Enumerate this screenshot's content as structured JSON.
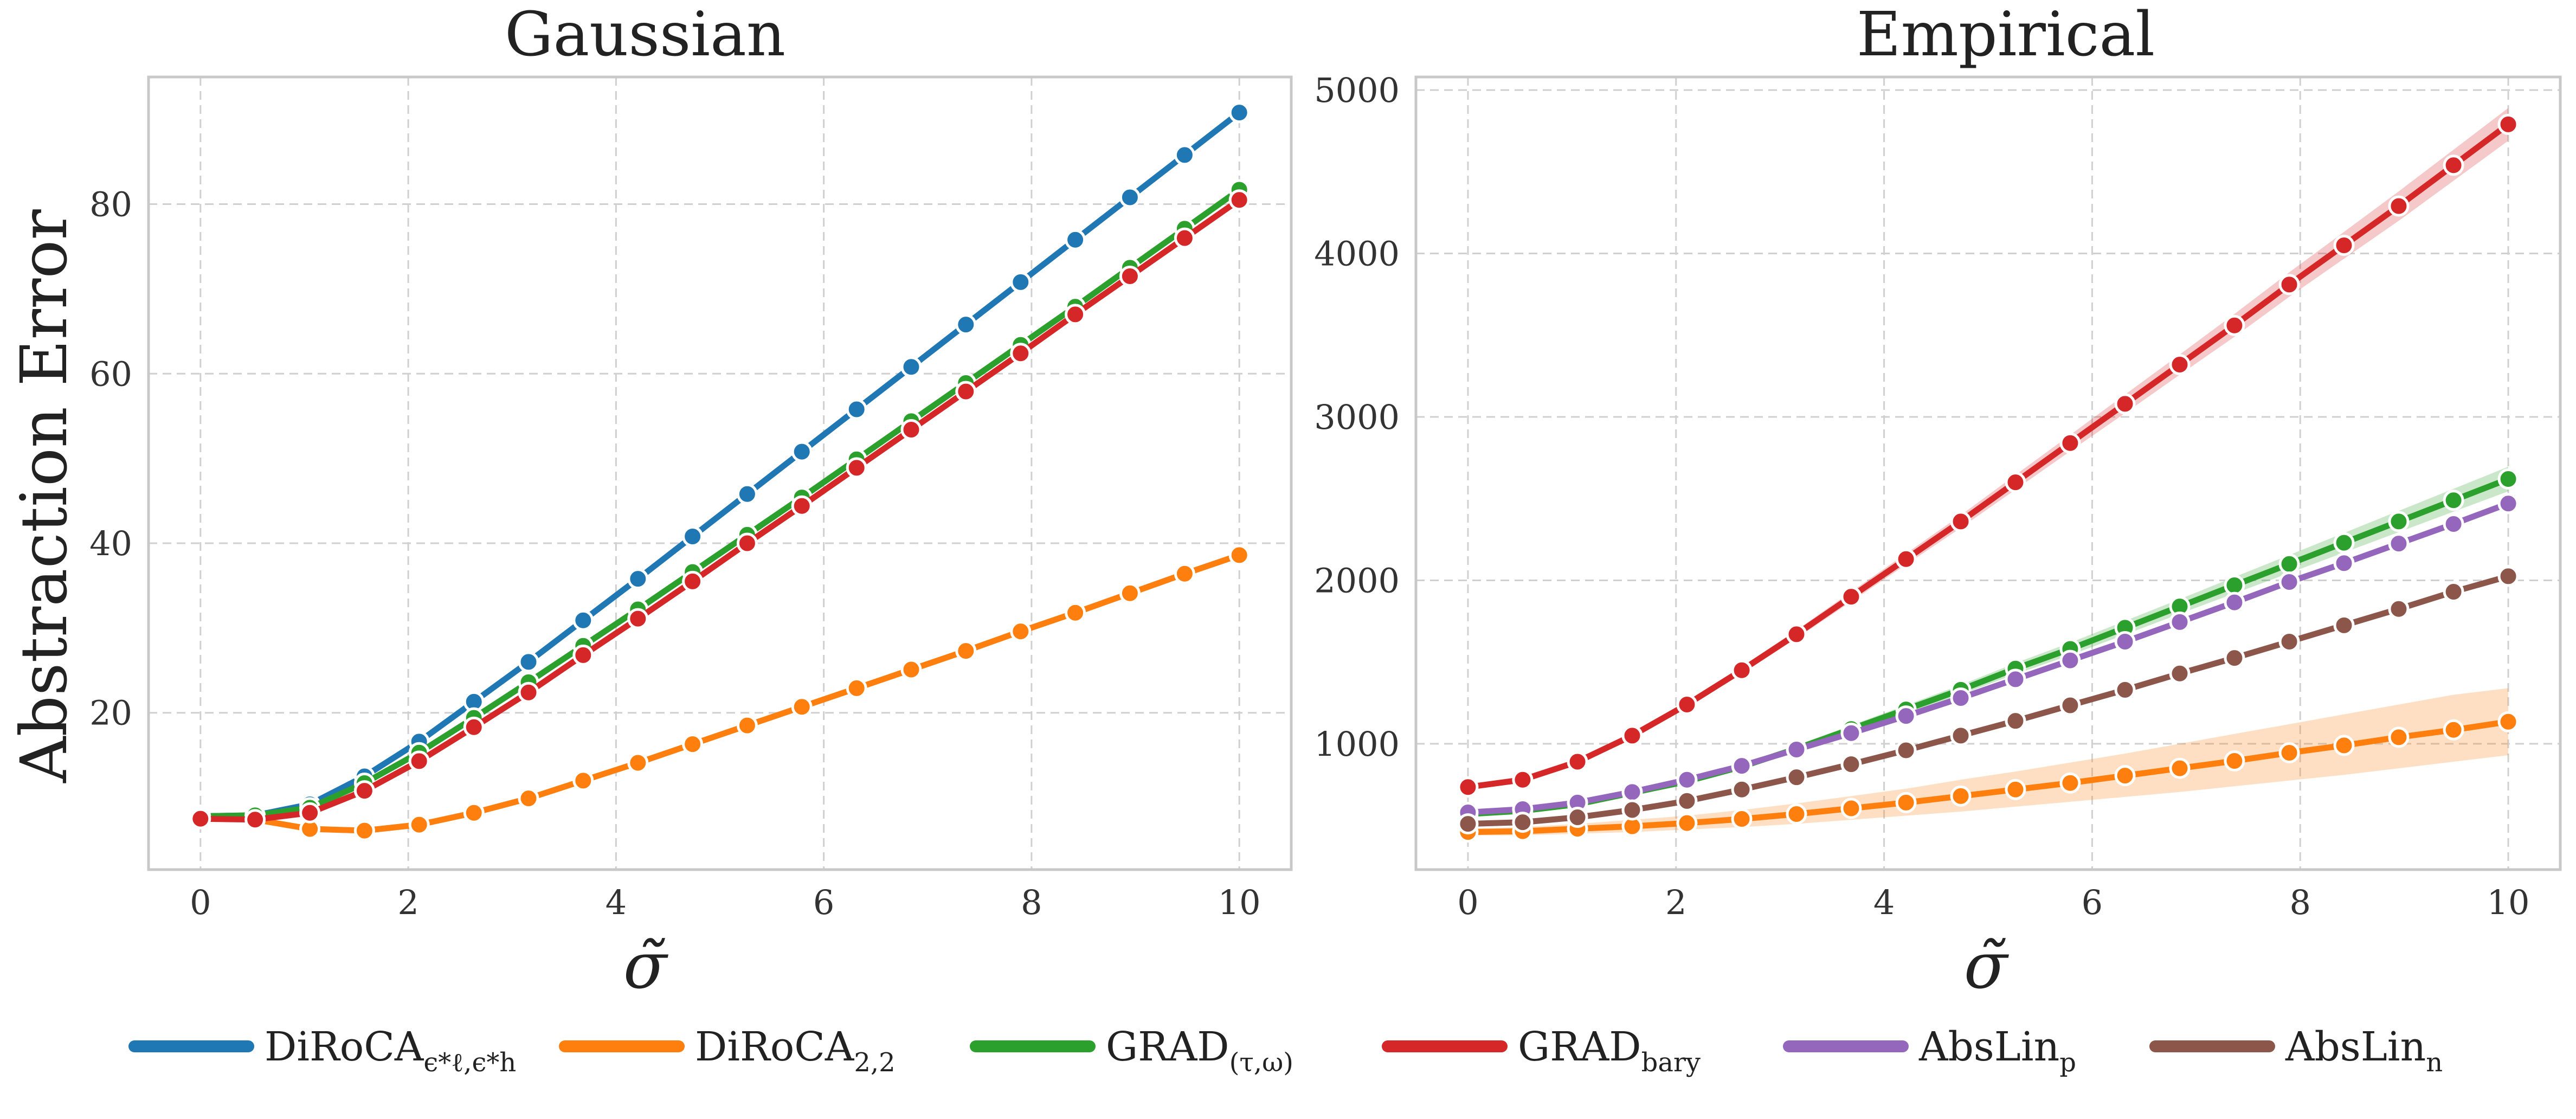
{
  "chart_data": [
    {
      "type": "line",
      "title": "Gaussian",
      "xlabel": "σ̃",
      "ylabel": "Abstraction Error",
      "xlim": [
        -0.5,
        10.5
      ],
      "ylim": [
        1.5,
        95
      ],
      "xticks": [
        0,
        2,
        4,
        6,
        8,
        10
      ],
      "yticks": [
        20,
        40,
        60,
        80
      ],
      "grid": true,
      "x": [
        0,
        0.526,
        1.053,
        1.579,
        2.105,
        2.632,
        3.158,
        3.684,
        4.211,
        4.737,
        5.263,
        5.789,
        6.316,
        6.842,
        7.368,
        7.895,
        8.421,
        8.947,
        9.474,
        10
      ],
      "series": [
        {
          "key": "diroca_eps",
          "values": [
            7.8,
            7.9,
            9.2,
            12.5,
            16.6,
            21.3,
            26.0,
            30.9,
            35.8,
            40.8,
            45.8,
            50.8,
            55.8,
            60.8,
            65.8,
            70.8,
            75.8,
            80.8,
            85.8,
            90.8
          ]
        },
        {
          "key": "diroca_22",
          "values": [
            7.6,
            7.4,
            6.3,
            6.1,
            6.8,
            8.2,
            9.9,
            12.0,
            14.1,
            16.3,
            18.5,
            20.7,
            22.9,
            25.1,
            27.3,
            29.6,
            31.8,
            34.1,
            36.4,
            38.6
          ]
        },
        {
          "key": "grad_tw",
          "values": [
            7.8,
            7.9,
            8.8,
            11.7,
            15.3,
            19.4,
            23.6,
            27.9,
            32.2,
            36.6,
            41.0,
            45.4,
            49.9,
            54.4,
            58.9,
            63.4,
            67.9,
            72.5,
            77.1,
            81.7
          ]
        },
        {
          "key": "grad_bary",
          "values": [
            7.5,
            7.4,
            8.2,
            10.8,
            14.3,
            18.3,
            22.4,
            26.8,
            31.1,
            35.5,
            40.0,
            44.4,
            48.9,
            53.4,
            57.9,
            62.4,
            67.0,
            71.5,
            76.0,
            80.5
          ]
        }
      ],
      "bands": []
    },
    {
      "type": "line",
      "title": "Empirical",
      "xlabel": "σ̃",
      "ylabel": "",
      "xlim": [
        -0.5,
        10.5
      ],
      "ylim": [
        230,
        5080
      ],
      "xticks": [
        0,
        2,
        4,
        6,
        8,
        10
      ],
      "yticks": [
        1000,
        2000,
        3000,
        4000,
        5000
      ],
      "grid": true,
      "x": [
        0,
        0.526,
        1.053,
        1.579,
        2.105,
        2.632,
        3.158,
        3.684,
        4.211,
        4.737,
        5.263,
        5.789,
        6.316,
        6.842,
        7.368,
        7.895,
        8.421,
        8.947,
        9.474,
        10
      ],
      "series": [
        {
          "key": "diroca_22",
          "values": [
            460,
            465,
            480,
            495,
            515,
            540,
            570,
            605,
            640,
            680,
            720,
            760,
            805,
            850,
            895,
            945,
            990,
            1040,
            1085,
            1135
          ]
        },
        {
          "key": "grad_tw",
          "values": [
            570,
            590,
            630,
            700,
            770,
            860,
            970,
            1090,
            1210,
            1330,
            1460,
            1580,
            1710,
            1840,
            1970,
            2100,
            2230,
            2360,
            2490,
            2620
          ]
        },
        {
          "key": "grad_bary",
          "values": [
            735,
            780,
            890,
            1050,
            1240,
            1450,
            1670,
            1900,
            2130,
            2360,
            2600,
            2840,
            3080,
            3320,
            3560,
            3810,
            4050,
            4290,
            4540,
            4790
          ]
        },
        {
          "key": "abslin_p",
          "values": [
            580,
            600,
            640,
            705,
            780,
            865,
            965,
            1065,
            1170,
            1280,
            1395,
            1510,
            1625,
            1745,
            1865,
            1990,
            2105,
            2225,
            2345,
            2470
          ]
        },
        {
          "key": "abslin_n",
          "values": [
            510,
            520,
            550,
            595,
            650,
            720,
            795,
            875,
            960,
            1050,
            1140,
            1235,
            1330,
            1430,
            1525,
            1625,
            1725,
            1825,
            1930,
            2025
          ]
        }
      ],
      "bands": [
        {
          "key": "diroca_22",
          "lower": [
            440,
            440,
            450,
            460,
            475,
            490,
            510,
            535,
            560,
            585,
            615,
            645,
            675,
            705,
            740,
            775,
            810,
            850,
            890,
            930
          ],
          "upper": [
            480,
            490,
            510,
            535,
            560,
            595,
            635,
            680,
            725,
            780,
            830,
            885,
            940,
            1000,
            1060,
            1120,
            1180,
            1240,
            1300,
            1340
          ]
        },
        {
          "key": "grad_bary",
          "lower": [
            725,
            770,
            878,
            1035,
            1222,
            1428,
            1645,
            1870,
            2096,
            2321,
            2555,
            2790,
            3023,
            3258,
            3490,
            3735,
            3968,
            4200,
            4445,
            4690
          ],
          "upper": [
            745,
            790,
            902,
            1065,
            1258,
            1472,
            1695,
            1930,
            2164,
            2399,
            2645,
            2890,
            3137,
            3382,
            3630,
            3885,
            4132,
            4380,
            4635,
            4890
          ]
        },
        {
          "key": "grad_tw",
          "lower": [
            560,
            580,
            618,
            686,
            754,
            842,
            950,
            1067,
            1184,
            1300,
            1426,
            1542,
            1668,
            1795,
            1920,
            2045,
            2170,
            2295,
            2420,
            2545
          ],
          "upper": [
            580,
            600,
            642,
            714,
            786,
            878,
            990,
            1113,
            1236,
            1360,
            1494,
            1618,
            1752,
            1885,
            2020,
            2155,
            2290,
            2425,
            2560,
            2695
          ]
        }
      ]
    }
  ],
  "legend": {
    "placement": "bottom-center",
    "items": [
      {
        "key": "diroca_eps",
        "label": "DiRoCA",
        "sub": "ϵ*ℓ,ϵ*h",
        "color": "#1f77b4"
      },
      {
        "key": "diroca_22",
        "label": "DiRoCA",
        "sub": "2,2",
        "color": "#ff7f0e"
      },
      {
        "key": "grad_tw",
        "label": "GRAD",
        "sub": "(τ,ω)",
        "color": "#2ca02c"
      },
      {
        "key": "grad_bary",
        "label": "GRAD",
        "sub": "bary",
        "color": "#d62728"
      },
      {
        "key": "abslin_p",
        "label": "AbsLin",
        "sub": "p",
        "color": "#9467bd"
      },
      {
        "key": "abslin_n",
        "label": "AbsLin",
        "sub": "n",
        "color": "#8c564b"
      }
    ]
  }
}
